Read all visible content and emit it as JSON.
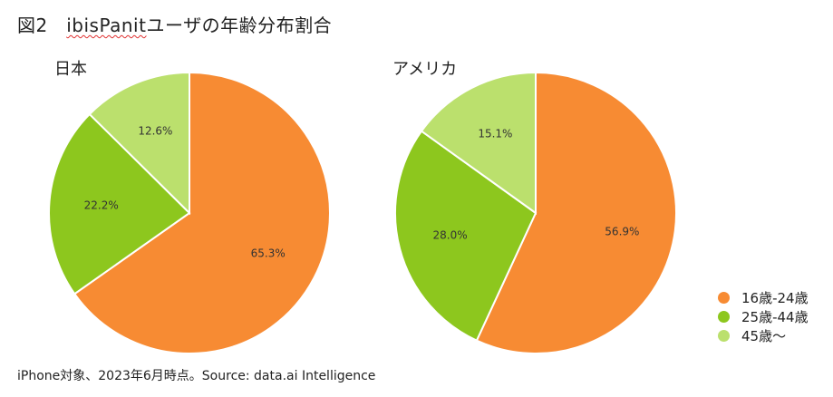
{
  "title": {
    "prefix": "図2　",
    "app_name": "ibisPanit",
    "suffix": "ユーザの年齢分布割合"
  },
  "chart_data": [
    {
      "type": "pie",
      "title": "日本",
      "categories": [
        "16歳-24歳",
        "25歳-44歳",
        "45歳～"
      ],
      "values": [
        65.3,
        22.2,
        12.6
      ],
      "labels": [
        "65.3%",
        "22.2%",
        "12.6%"
      ]
    },
    {
      "type": "pie",
      "title": "アメリカ",
      "categories": [
        "16歳-24歳",
        "25歳-44歳",
        "45歳～"
      ],
      "values": [
        56.9,
        28.0,
        15.1
      ],
      "labels": [
        "56.9%",
        "28.0%",
        "15.1%"
      ]
    }
  ],
  "legend": {
    "placement": "bottom-right",
    "items": [
      {
        "label": "16歳-24歳",
        "color": "#F78B33"
      },
      {
        "label": "25歳-44歳",
        "color": "#8DC71E"
      },
      {
        "label": "45歳～",
        "color": "#BBE06D"
      }
    ]
  },
  "source": "iPhone対象、2023年6月時点。Source: data.ai Intelligence"
}
